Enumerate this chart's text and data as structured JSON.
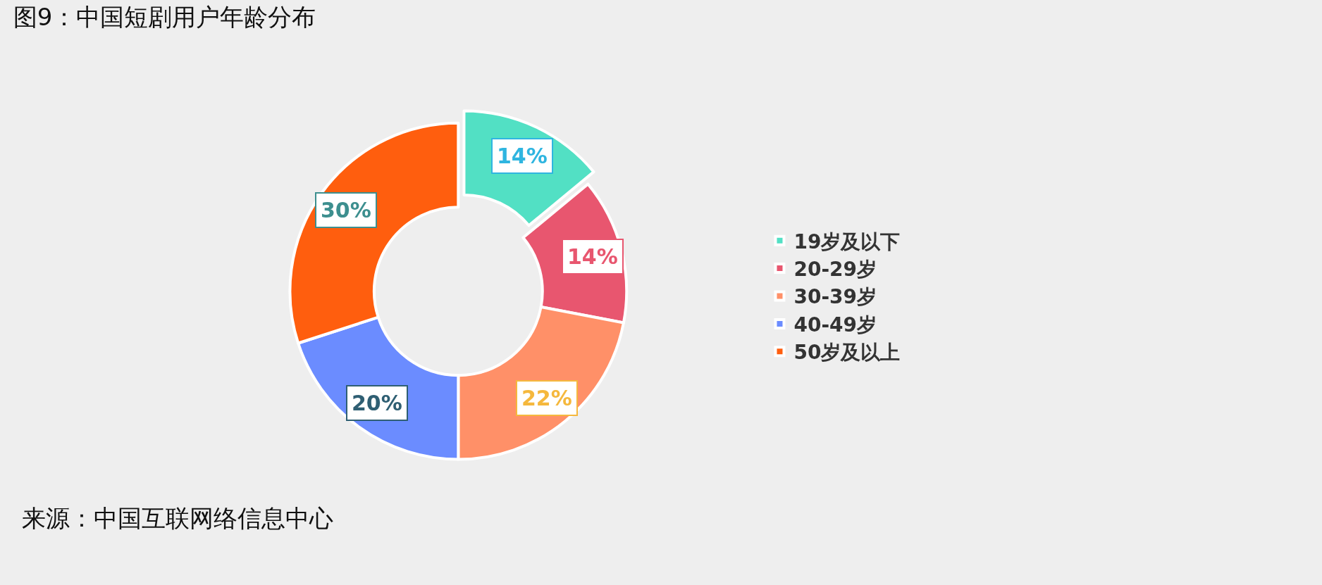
{
  "chart_data": {
    "type": "donut",
    "title": "图9：中国短剧用户年龄分布",
    "categories": [
      "19岁及以下",
      "20-29岁",
      "30-39岁",
      "40-49岁",
      "50岁及以上"
    ],
    "values": [
      14,
      14,
      22,
      20,
      30
    ],
    "value_labels": [
      "14%",
      "14%",
      "22%",
      "20%",
      "30%"
    ],
    "colors": [
      "#52e0c4",
      "#e8566f",
      "#ff9068",
      "#6b8cff",
      "#ff5e0e"
    ],
    "legend": "right",
    "annotations": [
      "来源：中国互联网络信息中心"
    ]
  }
}
